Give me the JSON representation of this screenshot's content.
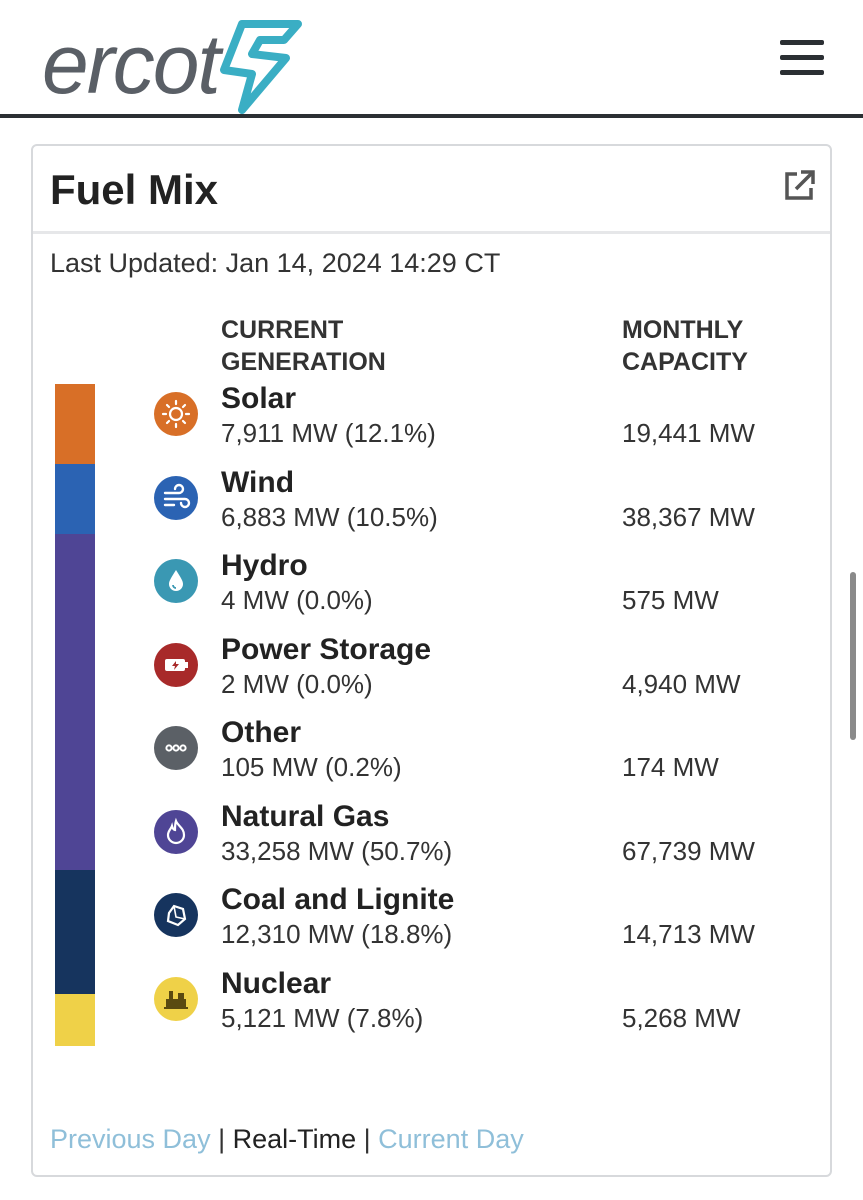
{
  "header": {
    "logo_text": "ercot",
    "menu_icon": "hamburger-menu-icon"
  },
  "card": {
    "title": "Fuel Mix",
    "external_icon": "external-link-icon",
    "last_updated": "Last Updated: Jan 14, 2024 14:29 CT",
    "columns": {
      "current_line1": "CURRENT",
      "current_line2": "GENERATION",
      "monthly_line1": "MONTHLY",
      "monthly_line2": "CAPACITY"
    },
    "fuels": [
      {
        "name": "Solar",
        "generation": "7,911 MW (12.1%)",
        "capacity": "19,441 MW",
        "color": "#d86f27",
        "icon": "sun-icon"
      },
      {
        "name": "Wind",
        "generation": "6,883 MW (10.5%)",
        "capacity": "38,367 MW",
        "color": "#2b63b3",
        "icon": "wind-icon"
      },
      {
        "name": "Hydro",
        "generation": "4 MW (0.0%)",
        "capacity": "575 MW",
        "color": "#3a98b3",
        "icon": "water-drop-icon"
      },
      {
        "name": "Power Storage",
        "generation": "2 MW (0.0%)",
        "capacity": "4,940 MW",
        "color": "#a82a2a",
        "icon": "battery-icon"
      },
      {
        "name": "Other",
        "generation": "105 MW (0.2%)",
        "capacity": "174 MW",
        "color": "#5b6066",
        "icon": "ellipsis-icon"
      },
      {
        "name": "Natural Gas",
        "generation": "33,258 MW (50.7%)",
        "capacity": "67,739 MW",
        "color": "#4f4595",
        "icon": "flame-icon"
      },
      {
        "name": "Coal and Lignite",
        "generation": "12,310 MW (18.8%)",
        "capacity": "14,713 MW",
        "color": "#16345e",
        "icon": "coal-icon"
      },
      {
        "name": "Nuclear",
        "generation": "5,121 MW (7.8%)",
        "capacity": "5,268 MW",
        "color": "#efd148",
        "icon": "nuclear-plant-icon"
      }
    ],
    "stack_bar": [
      {
        "fuel": "Solar",
        "share": 12.1,
        "color": "#d86f27"
      },
      {
        "fuel": "Wind",
        "share": 10.5,
        "color": "#2b63b3"
      },
      {
        "fuel": "Natural Gas",
        "share": 50.7,
        "color": "#4f4595"
      },
      {
        "fuel": "Coal and Lignite",
        "share": 18.8,
        "color": "#16345e"
      },
      {
        "fuel": "Nuclear",
        "share": 7.8,
        "color": "#efd148"
      }
    ],
    "footer": {
      "previous": "Previous Day",
      "separator": "|",
      "realtime": "Real-Time",
      "current_day": "Current Day"
    }
  }
}
